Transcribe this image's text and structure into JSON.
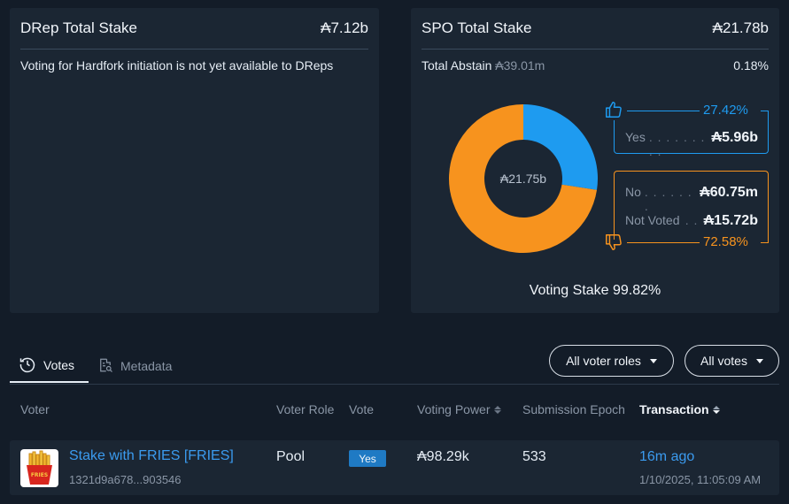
{
  "drep": {
    "title": "DRep Total Stake",
    "amount": "₳7.12b",
    "message": "Voting for Hardfork initiation is not yet available to DReps"
  },
  "spo": {
    "title": "SPO Total Stake",
    "amount": "₳21.78b",
    "abstain_label": "Total Abstain",
    "abstain_amount": "₳39.01m",
    "abstain_pct": "0.18%",
    "center_label": "₳21.75b",
    "yes_pct": "27.42%",
    "yes_label": "Yes",
    "yes_dots": ". . . . . . . . .",
    "yes_amount": "₳5.96b",
    "no_label": "No",
    "no_dots": ". . . . . . .",
    "no_amount": "₳60.75m",
    "notvoted_label": "Not Voted",
    "notvoted_dots": ". .",
    "notvoted_amount": "₳15.72b",
    "no_pct": "72.58%",
    "voting_stake": "Voting Stake 99.82%",
    "donut": {
      "yes_fraction": 0.2742,
      "yes_color": "#1e9bf0",
      "no_color": "#f7931e"
    }
  },
  "tabs": [
    {
      "label": "Votes",
      "icon": "vote-clock-icon",
      "active": true
    },
    {
      "label": "Metadata",
      "icon": "document-search-icon",
      "active": false
    }
  ],
  "filters": {
    "roles": "All voter roles",
    "votes": "All votes"
  },
  "table": {
    "headers": {
      "voter": "Voter",
      "role": "Voter Role",
      "vote": "Vote",
      "power": "Voting Power",
      "epoch": "Submission Epoch",
      "tx": "Transaction"
    },
    "rows": [
      {
        "name": "Stake with FRIES [FRIES]",
        "id": "1321d9a678...903546",
        "role": "Pool",
        "vote": "Yes",
        "power": "₳98.29k",
        "epoch": "533",
        "tx_time": "16m ago",
        "tx_date": "1/10/2025, 11:05:09 AM",
        "avatar_text": "FRIES"
      }
    ]
  }
}
